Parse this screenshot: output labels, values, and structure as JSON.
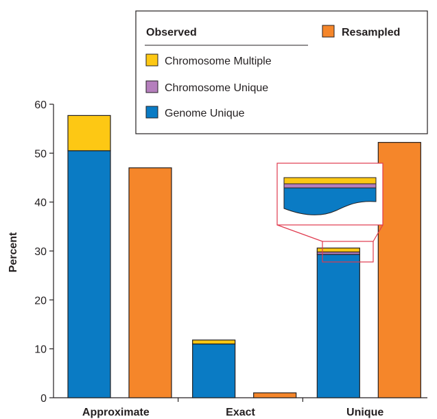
{
  "chart_data": {
    "type": "bar",
    "stacked": true,
    "ylabel": "Percent",
    "ylim": [
      0,
      60
    ],
    "yticks": [
      0,
      10,
      20,
      30,
      40,
      50,
      60
    ],
    "categories": [
      "Approximate",
      "Exact",
      "Unique"
    ],
    "observed": {
      "label": "Observed",
      "series": [
        {
          "name": "Genome Unique",
          "color": "#0a7bc4",
          "values": [
            50.5,
            11.0,
            29.3
          ]
        },
        {
          "name": "Chromosome Unique",
          "color": "#b57fbd",
          "values": [
            0.0,
            0.0,
            0.5
          ]
        },
        {
          "name": "Chromosome Multiple",
          "color": "#fdc814",
          "values": [
            7.2,
            0.8,
            0.8
          ]
        }
      ]
    },
    "resampled": {
      "name": "Resampled",
      "color": "#f5862a",
      "values": [
        47.0,
        1.0,
        52.2
      ]
    },
    "legend": {
      "placement": "top-right"
    },
    "grid": false
  }
}
